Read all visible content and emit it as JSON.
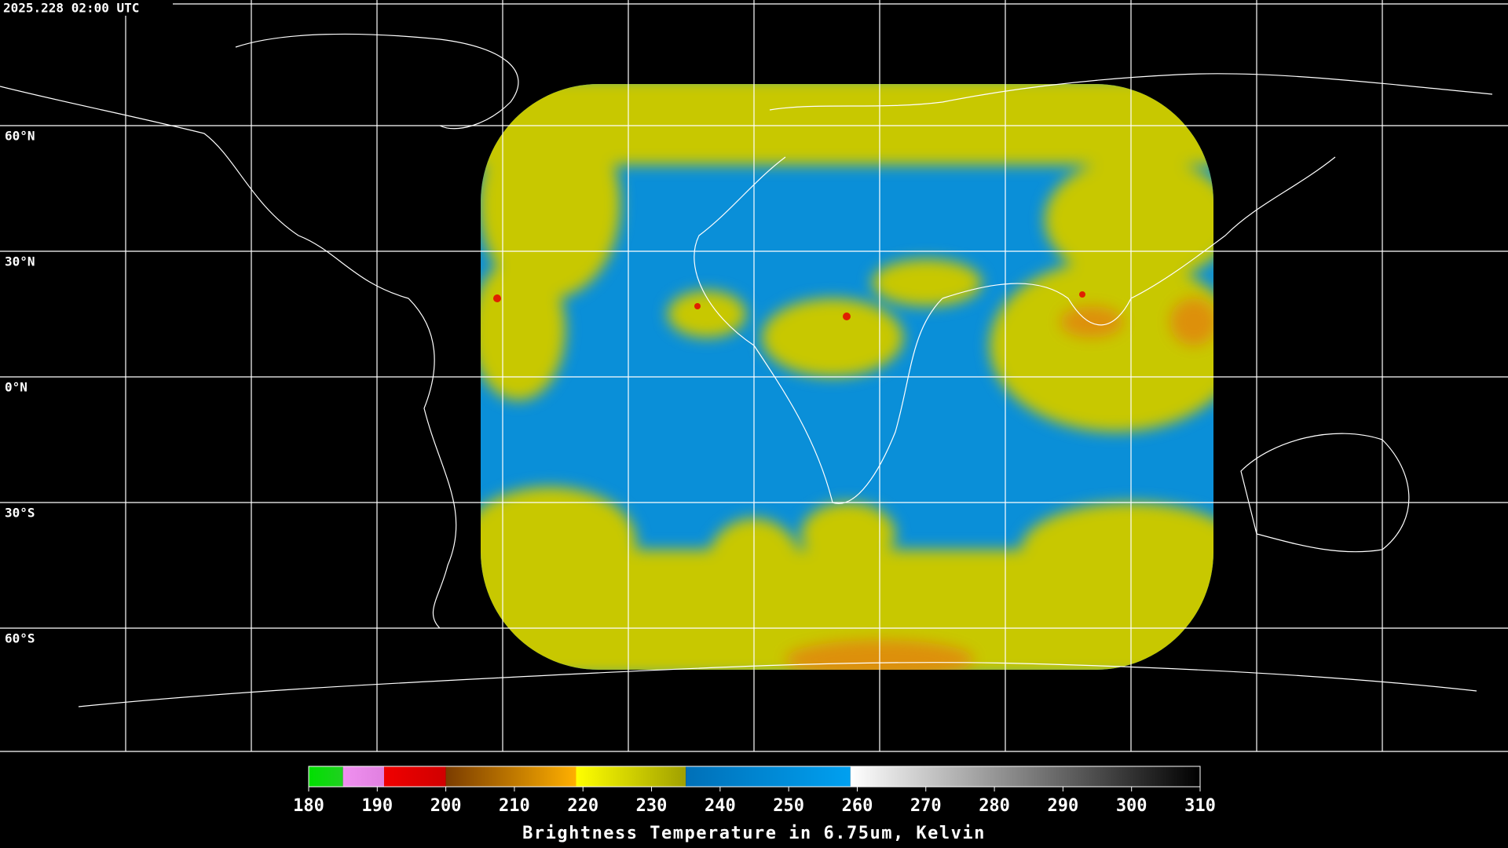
{
  "header": {
    "timestamp": "2025.228 02:00 UTC"
  },
  "map": {
    "lat_labels": [
      "60°N",
      "30°N",
      "0°N",
      "30°S",
      "60°S"
    ]
  },
  "colorbar": {
    "title": "Brightness Temperature in 6.75um, Kelvin",
    "range": [
      180,
      310
    ],
    "ticks": [
      180,
      190,
      200,
      210,
      220,
      230,
      240,
      250,
      260,
      270,
      280,
      290,
      300,
      310
    ],
    "segments": [
      {
        "from": 180,
        "to": 185,
        "colors": [
          "#00e000",
          "#20d020"
        ]
      },
      {
        "from": 185,
        "to": 191,
        "colors": [
          "#f090f0",
          "#e080e0"
        ]
      },
      {
        "from": 191,
        "to": 200,
        "colors": [
          "#f00000",
          "#d00000"
        ]
      },
      {
        "from": 200,
        "to": 219,
        "colors": [
          "#7a3c00",
          "#ffb000"
        ]
      },
      {
        "from": 219,
        "to": 235,
        "colors": [
          "#ffff00",
          "#a0a000"
        ]
      },
      {
        "from": 235,
        "to": 259,
        "colors": [
          "#0070b8",
          "#00a0f0"
        ]
      },
      {
        "from": 259,
        "to": 310,
        "colors": [
          "#ffffff",
          "#000000"
        ]
      }
    ]
  }
}
